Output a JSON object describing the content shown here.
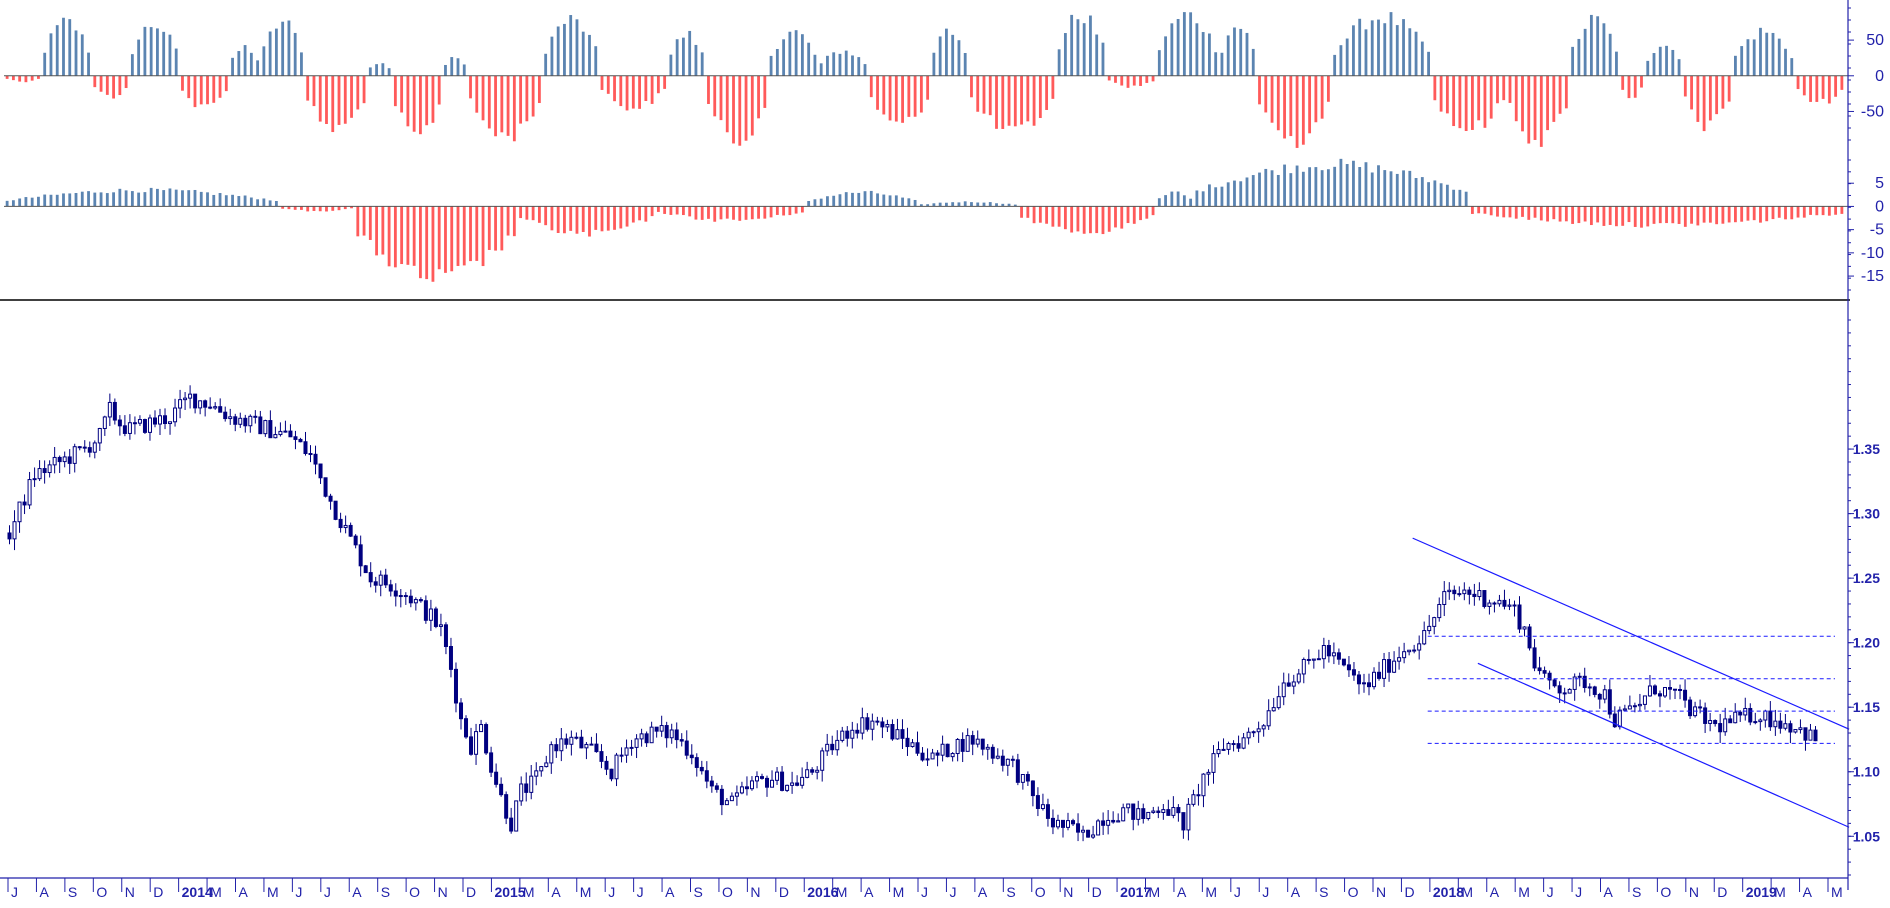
{
  "colors": {
    "background": "#ffffff",
    "candle": "#000080",
    "axis": "#2222aa",
    "histogram_positive": "#5b84b1",
    "histogram_negative": "#ff5a5a",
    "trendline": "#1a1aff",
    "level_line": "#1a1aff",
    "divider": "#000000"
  },
  "chart_data": [
    {
      "type": "histogram",
      "panel": "oscillator-1",
      "ylim": [
        -90,
        95
      ],
      "y_ticks": [
        "50",
        "0",
        "-50"
      ],
      "y_tick_values": [
        50,
        0,
        -50
      ],
      "zero_line": true,
      "segments": [
        [
          0,
          6,
          -8
        ],
        [
          6,
          14,
          75
        ],
        [
          14,
          20,
          -30
        ],
        [
          20,
          28,
          72
        ],
        [
          28,
          36,
          -45
        ],
        [
          36,
          41,
          40
        ],
        [
          41,
          48,
          75
        ],
        [
          48,
          58,
          -75
        ],
        [
          58,
          62,
          20
        ],
        [
          62,
          70,
          -85
        ],
        [
          70,
          74,
          25
        ],
        [
          74,
          86,
          -85
        ],
        [
          86,
          95,
          78
        ],
        [
          95,
          106,
          -45
        ],
        [
          106,
          112,
          58
        ],
        [
          112,
          122,
          -90
        ],
        [
          122,
          130,
          62
        ],
        [
          130,
          138,
          35
        ],
        [
          138,
          148,
          -70
        ],
        [
          148,
          154,
          62
        ],
        [
          154,
          168,
          -80
        ],
        [
          168,
          176,
          85
        ],
        [
          176,
          184,
          -15
        ],
        [
          184,
          194,
          85
        ],
        [
          194,
          200,
          70
        ],
        [
          200,
          212,
          -90
        ],
        [
          212,
          228,
          82
        ],
        [
          228,
          240,
          -75
        ],
        [
          240,
          250,
          -90
        ],
        [
          250,
          258,
          78
        ],
        [
          258,
          262,
          -30
        ],
        [
          262,
          268,
          45
        ],
        [
          268,
          276,
          -70
        ],
        [
          276,
          286,
          62
        ],
        [
          286,
          294,
          -38
        ]
      ],
      "n_weeks": 294
    },
    {
      "type": "histogram",
      "panel": "oscillator-2",
      "ylim": [
        -18,
        10
      ],
      "y_ticks": [
        "5",
        "0",
        "-5",
        "-10",
        "-15"
      ],
      "y_tick_values": [
        5,
        0,
        -5,
        -10,
        -15
      ],
      "zero_line": true,
      "segments": [
        [
          0,
          44,
          3.5
        ],
        [
          44,
          56,
          -1
        ],
        [
          56,
          82,
          -15.5
        ],
        [
          82,
          104,
          -6
        ],
        [
          104,
          128,
          -3
        ],
        [
          128,
          146,
          3
        ],
        [
          146,
          162,
          1
        ],
        [
          162,
          184,
          -5.5
        ],
        [
          184,
          190,
          3
        ],
        [
          190,
          234,
          9
        ],
        [
          234,
          294,
          -4
        ]
      ],
      "n_weeks": 294
    },
    {
      "type": "candlestick",
      "panel": "price",
      "frequency": "weekly",
      "x_start": "2013-07",
      "x_end": "2019-05",
      "ylim": [
        1.02,
        1.45
      ],
      "y_ticks": [
        "1.35",
        "1.30",
        "1.25",
        "1.20",
        "1.15",
        "1.10",
        "1.05"
      ],
      "y_tick_values": [
        1.35,
        1.3,
        1.25,
        1.2,
        1.15,
        1.1,
        1.05
      ],
      "x_tick_labels": [
        "J",
        "A",
        "S",
        "O",
        "N",
        "D",
        "2014",
        "M",
        "A",
        "M",
        "J",
        "J",
        "A",
        "S",
        "O",
        "N",
        "D",
        "2015",
        "M",
        "A",
        "M",
        "J",
        "J",
        "A",
        "S",
        "O",
        "N",
        "D",
        "2016",
        "M",
        "A",
        "M",
        "J",
        "J",
        "A",
        "S",
        "O",
        "N",
        "D",
        "2017",
        "M",
        "A",
        "M",
        "J",
        "J",
        "A",
        "S",
        "O",
        "N",
        "D",
        "2018",
        "M",
        "A",
        "M",
        "J",
        "J",
        "A",
        "S",
        "O",
        "N",
        "D",
        "2019",
        "M",
        "A",
        "M"
      ],
      "x_tick_label_bold": [
        false,
        false,
        false,
        false,
        false,
        false,
        true,
        false,
        false,
        false,
        false,
        false,
        false,
        false,
        false,
        false,
        false,
        true,
        false,
        false,
        false,
        false,
        false,
        false,
        false,
        false,
        false,
        false,
        true,
        false,
        false,
        false,
        false,
        false,
        false,
        false,
        false,
        false,
        false,
        true,
        false,
        false,
        false,
        false,
        false,
        false,
        false,
        false,
        false,
        false,
        true,
        false,
        false,
        false,
        false,
        false,
        false,
        false,
        false,
        false,
        false,
        true,
        false,
        false,
        false
      ],
      "anchors": [
        [
          0,
          1.285
        ],
        [
          5,
          1.33
        ],
        [
          10,
          1.34
        ],
        [
          15,
          1.35
        ],
        [
          18,
          1.36
        ],
        [
          20,
          1.38
        ],
        [
          22,
          1.37
        ],
        [
          24,
          1.365
        ],
        [
          28,
          1.37
        ],
        [
          32,
          1.375
        ],
        [
          36,
          1.39
        ],
        [
          40,
          1.385
        ],
        [
          44,
          1.375
        ],
        [
          48,
          1.37
        ],
        [
          52,
          1.365
        ],
        [
          56,
          1.36
        ],
        [
          60,
          1.345
        ],
        [
          64,
          1.31
        ],
        [
          68,
          1.28
        ],
        [
          72,
          1.25
        ],
        [
          76,
          1.245
        ],
        [
          80,
          1.235
        ],
        [
          84,
          1.22
        ],
        [
          86,
          1.21
        ],
        [
          88,
          1.18
        ],
        [
          90,
          1.14
        ],
        [
          92,
          1.12
        ],
        [
          94,
          1.135
        ],
        [
          96,
          1.105
        ],
        [
          98,
          1.08
        ],
        [
          100,
          1.06
        ],
        [
          102,
          1.085
        ],
        [
          104,
          1.09
        ],
        [
          106,
          1.1
        ],
        [
          108,
          1.12
        ],
        [
          112,
          1.125
        ],
        [
          116,
          1.115
        ],
        [
          120,
          1.1
        ],
        [
          124,
          1.125
        ],
        [
          128,
          1.13
        ],
        [
          132,
          1.13
        ],
        [
          136,
          1.115
        ],
        [
          140,
          1.085
        ],
        [
          144,
          1.075
        ],
        [
          148,
          1.09
        ],
        [
          152,
          1.095
        ],
        [
          156,
          1.09
        ],
        [
          160,
          1.1
        ],
        [
          164,
          1.12
        ],
        [
          168,
          1.135
        ],
        [
          172,
          1.14
        ],
        [
          176,
          1.13
        ],
        [
          180,
          1.12
        ],
        [
          184,
          1.11
        ],
        [
          188,
          1.12
        ],
        [
          192,
          1.125
        ],
        [
          196,
          1.115
        ],
        [
          200,
          1.105
        ],
        [
          204,
          1.08
        ],
        [
          208,
          1.06
        ],
        [
          212,
          1.055
        ],
        [
          214,
          1.05
        ],
        [
          218,
          1.065
        ],
        [
          222,
          1.07
        ],
        [
          226,
          1.065
        ],
        [
          230,
          1.075
        ],
        [
          234,
          1.06
        ],
        [
          238,
          1.095
        ],
        [
          242,
          1.12
        ],
        [
          246,
          1.125
        ],
        [
          250,
          1.14
        ],
        [
          254,
          1.17
        ],
        [
          258,
          1.18
        ],
        [
          262,
          1.195
        ],
        [
          266,
          1.18
        ],
        [
          270,
          1.165
        ],
        [
          274,
          1.18
        ],
        [
          278,
          1.195
        ],
        [
          282,
          1.205
        ],
        [
          286,
          1.235
        ],
        [
          290,
          1.24
        ]
      ],
      "anchors_part2": [
        [
          290,
          1.24
        ],
        [
          294,
          1.235
        ],
        [
          298,
          1.23
        ],
        [
          300,
          1.225
        ],
        [
          302,
          1.21
        ],
        [
          304,
          1.185
        ],
        [
          306,
          1.17
        ],
        [
          310,
          1.165
        ],
        [
          314,
          1.17
        ],
        [
          318,
          1.16
        ],
        [
          320,
          1.14
        ],
        [
          324,
          1.15
        ],
        [
          328,
          1.165
        ],
        [
          332,
          1.16
        ],
        [
          336,
          1.145
        ],
        [
          340,
          1.135
        ],
        [
          344,
          1.14
        ],
        [
          348,
          1.145
        ],
        [
          352,
          1.14
        ],
        [
          356,
          1.135
        ],
        [
          360,
          1.125
        ]
      ],
      "n_weeks": 361,
      "key_levels": [
        1.205,
        1.172,
        1.147,
        1.122
      ],
      "key_levels_x_start": "2017-06",
      "trendlines": [
        {
          "from": [
            280,
            1.281
          ],
          "to": [
            367,
            1.133
          ]
        },
        {
          "from": [
            293,
            1.184
          ],
          "to": [
            367,
            1.057
          ]
        }
      ]
    }
  ]
}
